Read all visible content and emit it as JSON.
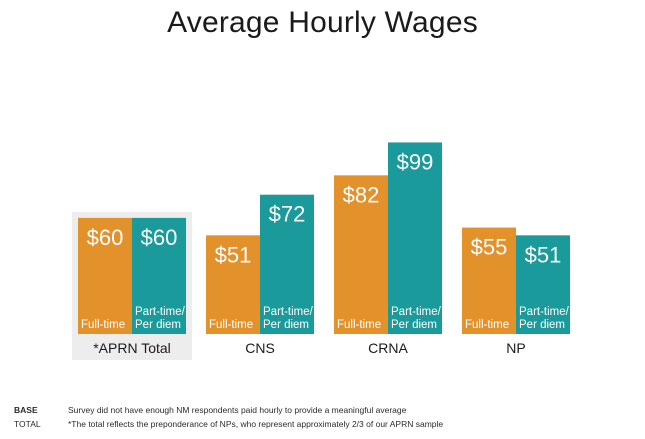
{
  "chart_data": {
    "type": "bar",
    "title": "Average Hourly Wages",
    "categories": [
      "*APRN Total",
      "CNS",
      "CRNA",
      "NP"
    ],
    "series": [
      {
        "name": "Full-time",
        "values": [
          60,
          51,
          82,
          55
        ]
      },
      {
        "name": "Part-time/ Per diem",
        "values": [
          60,
          72,
          99,
          51
        ]
      }
    ],
    "value_labels": [
      [
        "$60",
        "$51",
        "$82",
        "$55"
      ],
      [
        "$60",
        "$72",
        "$99",
        "$51"
      ]
    ],
    "bar_labels": [
      [
        "Full-time"
      ],
      [
        "Part-time/",
        "Per diem"
      ]
    ],
    "ylim": [
      0,
      110
    ],
    "grid": false,
    "legend": "none",
    "highlighted_category": "*APRN Total",
    "colors": {
      "full_time": "#E3922B",
      "part_time": "#1B9A9B",
      "highlight_bg": "#EDEDED"
    }
  },
  "footnotes": [
    {
      "key": "BASE",
      "text": "Survey did not have enough NM respondents paid hourly to provide a meaningful average"
    },
    {
      "key": "TOTAL",
      "text": "*The total reflects the preponderance of NPs, who represent approximately 2/3 of our APRN sample"
    }
  ]
}
